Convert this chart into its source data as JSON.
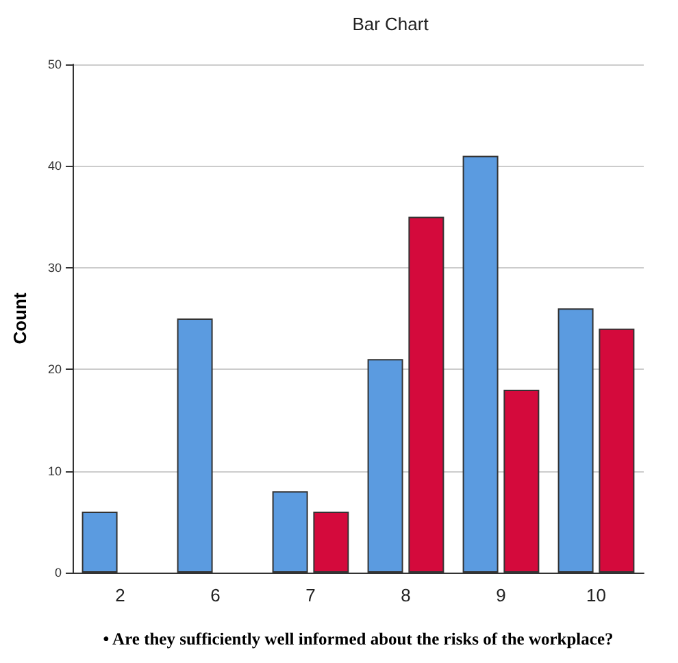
{
  "chart_data": {
    "type": "bar",
    "title": "Bar Chart",
    "ylabel": "Count",
    "xlabel": "• Are they sufficiently well informed about the risks of the workplace?",
    "categories": [
      "2",
      "6",
      "7",
      "8",
      "9",
      "10"
    ],
    "series": [
      {
        "color": "#5b9be0",
        "values": [
          6,
          25,
          8,
          21,
          41,
          26
        ]
      },
      {
        "color": "#d40a3c",
        "values": [
          null,
          null,
          6,
          35,
          18,
          24
        ]
      }
    ],
    "ylim": [
      0,
      50
    ],
    "yticks": [
      0,
      10,
      20,
      30,
      40,
      50
    ],
    "grid": "y"
  }
}
